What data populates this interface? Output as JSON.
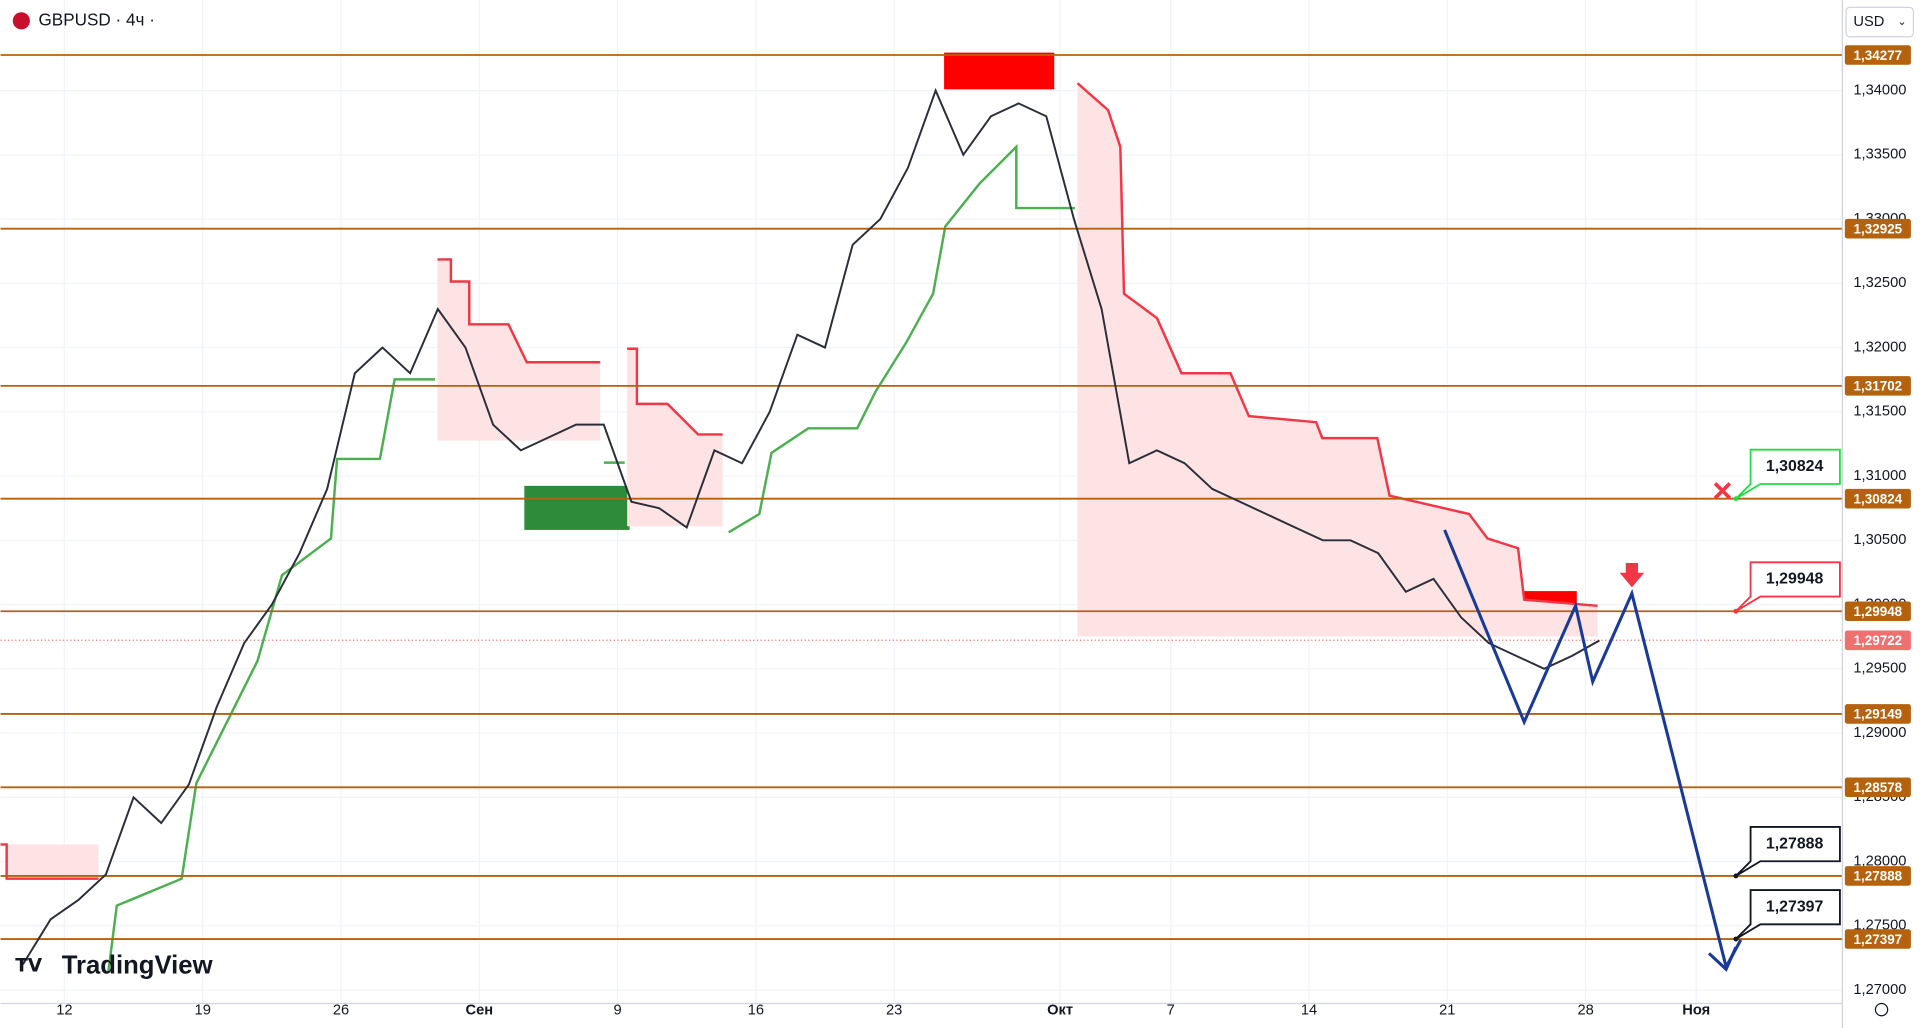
{
  "chart_data": {
    "type": "line",
    "title": "GBPUSD · 4ч ·",
    "currency": "USD",
    "watermark": "TradingView",
    "color": "#2a2e39",
    "categories": [
      null,
      null,
      "12",
      null,
      null,
      null,
      null,
      "19",
      null,
      null,
      null,
      null,
      "26",
      null,
      null,
      null,
      null,
      "Сен",
      null,
      null,
      null,
      null,
      "9",
      null,
      null,
      null,
      null,
      "16",
      null,
      null,
      null,
      null,
      "23",
      null,
      null,
      null,
      null,
      null,
      "Окт",
      null,
      null,
      null,
      "7",
      null,
      null,
      null,
      null,
      "14",
      null,
      null,
      null,
      null,
      "21",
      null,
      null,
      null,
      null,
      "28",
      null,
      null,
      null,
      "Ноя",
      null,
      null,
      null,
      null
    ],
    "values": [
      1.272,
      1.2755,
      1.277,
      1.279,
      1.285,
      1.283,
      1.286,
      1.292,
      1.297,
      1.3,
      1.304,
      1.309,
      1.318,
      1.32,
      1.318,
      1.323,
      1.32,
      1.314,
      1.312,
      1.313,
      1.314,
      1.314,
      1.308,
      1.3075,
      1.306,
      1.312,
      1.311,
      1.315,
      1.321,
      1.32,
      1.328,
      1.33,
      1.334,
      1.34,
      1.335,
      1.338,
      1.339,
      1.338,
      1.33,
      1.323,
      1.311,
      1.312,
      1.311,
      1.309,
      1.308,
      1.307,
      1.306,
      1.305,
      1.305,
      1.304,
      1.301,
      1.302,
      1.299,
      1.297,
      1.296,
      1.295,
      1.296,
      1.2972,
      null,
      null,
      null,
      null,
      null,
      null,
      null,
      null
    ],
    "ylim": [
      1.26895,
      1.34705
    ],
    "yticks": [
      {
        "value": 1.27,
        "label": "1,27000"
      },
      {
        "value": 1.275,
        "label": "1,27500"
      },
      {
        "value": 1.28,
        "label": "1,28000"
      },
      {
        "value": 1.285,
        "label": "1,28500"
      },
      {
        "value": 1.29,
        "label": "1,29000"
      },
      {
        "value": 1.295,
        "label": "1,29500"
      },
      {
        "value": 1.3,
        "label": "1,30000"
      },
      {
        "value": 1.305,
        "label": "1,30500"
      },
      {
        "value": 1.31,
        "label": "1,31000"
      },
      {
        "value": 1.315,
        "label": "1,31500"
      },
      {
        "value": 1.32,
        "label": "1,32000"
      },
      {
        "value": 1.325,
        "label": "1,32500"
      },
      {
        "value": 1.33,
        "label": "1,33000"
      },
      {
        "value": 1.335,
        "label": "1,33500"
      },
      {
        "value": 1.34,
        "label": "1,34000"
      }
    ],
    "levels": [
      {
        "value": 1.34277,
        "label": "1,34277"
      },
      {
        "value": 1.32925,
        "label": "1,32925"
      },
      {
        "value": 1.31702,
        "label": "1,31702"
      },
      {
        "value": 1.30824,
        "label": "1,30824"
      },
      {
        "value": 1.29948,
        "label": "1,29948"
      },
      {
        "value": 1.29149,
        "label": "1,29149"
      },
      {
        "value": 1.28578,
        "label": "1,28578"
      },
      {
        "value": 1.27888,
        "label": "1,27888"
      },
      {
        "value": 1.27397,
        "label": "1,27397"
      }
    ],
    "level_color": "#b4620e",
    "current_price": {
      "value": 1.29722,
      "label": "1,29722",
      "color": "#f07070"
    },
    "callouts": [
      {
        "value": 1.30824,
        "label": "1,30824",
        "color": "#22dd44"
      },
      {
        "value": 1.29948,
        "label": "1,29948",
        "color": "#f23645"
      },
      {
        "value": 1.27888,
        "label": "1,27888",
        "color": "#131722"
      },
      {
        "value": 1.27397,
        "label": "1,27397",
        "color": "#131722"
      }
    ]
  }
}
